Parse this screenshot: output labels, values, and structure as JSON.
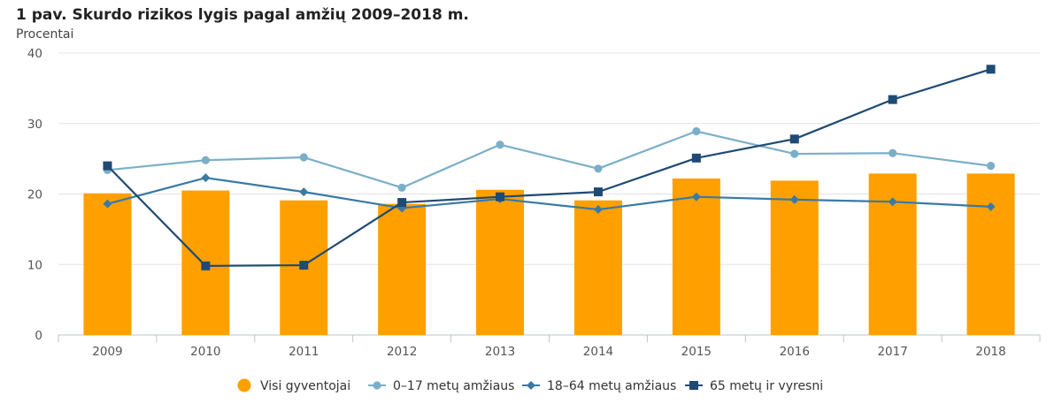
{
  "chart_data": {
    "type": "bar",
    "title": "1 pav. Skurdo rizikos lygis pagal amžių 2009–2018 m.",
    "ylabel": "Procentai",
    "xlabel": "",
    "ylim": [
      0,
      40
    ],
    "yticks": [
      0,
      10,
      20,
      30,
      40
    ],
    "grid": true,
    "legend_position": "bottom",
    "categories": [
      "2009",
      "2010",
      "2011",
      "2012",
      "2013",
      "2014",
      "2015",
      "2016",
      "2017",
      "2018"
    ],
    "series": [
      {
        "name": "Visi gyventojai",
        "kind": "bar",
        "color": "#FFA000",
        "marker": "circle",
        "values": [
          20.1,
          20.5,
          19.1,
          18.6,
          20.6,
          19.1,
          22.2,
          21.9,
          22.9,
          22.9
        ]
      },
      {
        "name": "0–17 metų amžiaus",
        "kind": "line",
        "color": "#7BAFC9",
        "marker": "circle",
        "values": [
          23.4,
          24.8,
          25.2,
          20.9,
          27.0,
          23.6,
          28.9,
          25.7,
          25.8,
          24.0
        ]
      },
      {
        "name": "18–64 metų amžiaus",
        "kind": "line",
        "color": "#3A7AA5",
        "marker": "diamond",
        "values": [
          18.6,
          22.3,
          20.3,
          18.0,
          19.3,
          17.8,
          19.6,
          19.2,
          18.9,
          18.2
        ]
      },
      {
        "name": "65 metų ir vyresni",
        "kind": "line",
        "color": "#1E4A74",
        "marker": "square",
        "values": [
          24.0,
          9.8,
          9.9,
          18.8,
          19.6,
          20.3,
          25.1,
          27.8,
          33.4,
          37.7
        ]
      }
    ]
  }
}
